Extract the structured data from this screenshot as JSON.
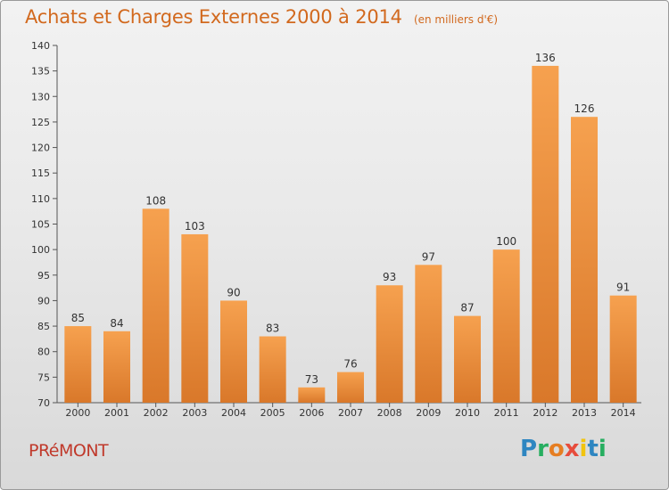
{
  "header": {
    "title": "Achats et Charges Externes 2000 à 2014",
    "unit": "(en milliers d'€)"
  },
  "commune": "PRéMONT",
  "logo": {
    "letters": [
      "P",
      "r",
      "o",
      "x",
      "i",
      "t",
      "i"
    ],
    "colors": [
      "#2e86c1",
      "#27ae60",
      "#e67e22",
      "#e74c3c",
      "#f1c40f",
      "#2e86c1",
      "#27ae60"
    ]
  },
  "colors": {
    "bar_top": "#f6a14f",
    "bar_bottom": "#d9782a",
    "title": "#d2691e",
    "commune": "#c0392b"
  },
  "chart_data": {
    "type": "bar",
    "categories": [
      "2000",
      "2001",
      "2002",
      "2003",
      "2004",
      "2005",
      "2006",
      "2007",
      "2008",
      "2009",
      "2010",
      "2011",
      "2012",
      "2013",
      "2014"
    ],
    "values": [
      85,
      84,
      108,
      103,
      90,
      83,
      73,
      76,
      93,
      97,
      87,
      100,
      136,
      126,
      91
    ],
    "ylim": [
      70,
      140
    ],
    "yticks": [
      70,
      75,
      80,
      85,
      90,
      95,
      100,
      105,
      110,
      115,
      120,
      125,
      130,
      135,
      140
    ],
    "data_labels": true,
    "grid": false
  }
}
